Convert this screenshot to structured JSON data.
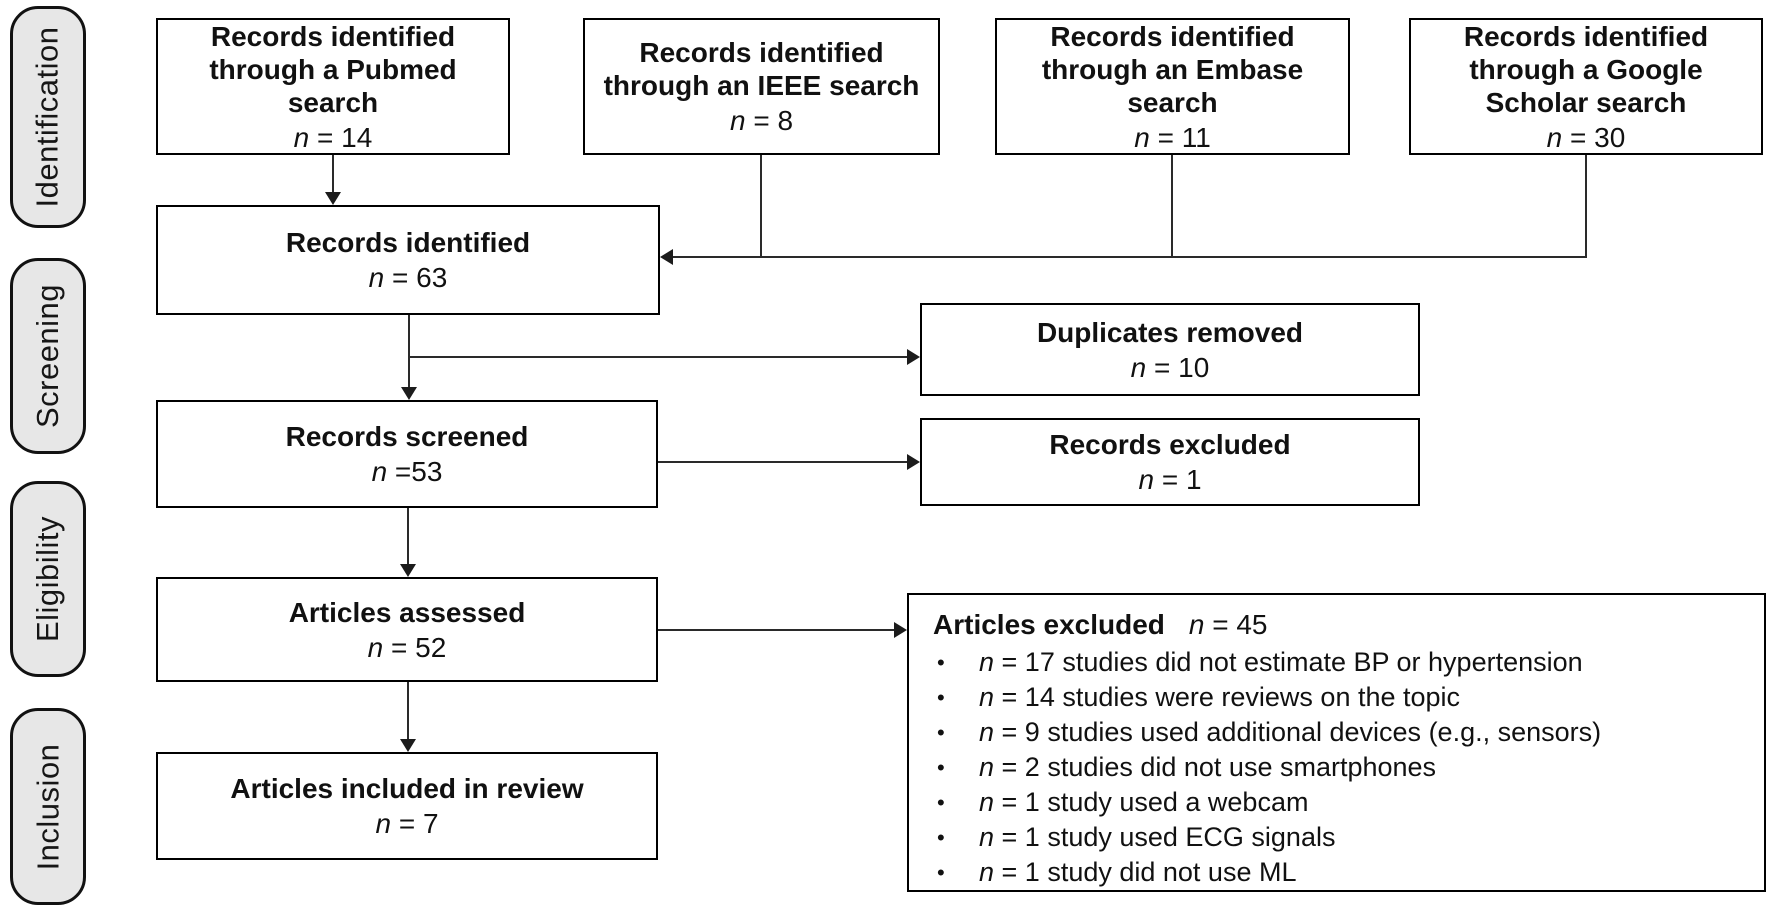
{
  "figure": {
    "kind": "PRISMA flow diagram",
    "colors": {
      "pill_fill": "#e7e7e7",
      "border": "#000000",
      "line": "#2a2a2a",
      "text": "#111111"
    }
  },
  "stages": [
    {
      "label": "Identification"
    },
    {
      "label": "Screening"
    },
    {
      "label": "Eligibility"
    },
    {
      "label": "Inclusion"
    }
  ],
  "source_boxes": [
    {
      "title": "Records identified through a Pubmed search",
      "count": "n = 14"
    },
    {
      "title": "Records identified through an IEEE search",
      "count": "n = 8"
    },
    {
      "title": "Records identified through an Embase search",
      "count": "n = 11"
    },
    {
      "title": "Records identified through a Google Scholar search",
      "count": "n = 30"
    }
  ],
  "flow_boxes": {
    "identified": {
      "title": "Records identified",
      "count": "n = 63"
    },
    "duplicates": {
      "title": "Duplicates removed",
      "count": "n = 10"
    },
    "screened": {
      "title": "Records screened",
      "count": "n =53"
    },
    "excluded": {
      "title": "Records excluded",
      "count": "n = 1"
    },
    "assessed": {
      "title": "Articles assessed",
      "count": "n = 52"
    },
    "included": {
      "title": "Articles included in review",
      "count": "n = 7"
    }
  },
  "excluded_box": {
    "title": "Articles excluded",
    "count": "n = 45",
    "items": [
      "n = 17 studies did not estimate BP or hypertension",
      "n = 14 studies were reviews on the topic",
      "n = 9 studies used additional devices (e.g., sensors)",
      "n = 2 studies did not use smartphones",
      "n = 1 study used a webcam",
      "n = 1 study used ECG signals",
      "n = 1 study did not use ML"
    ]
  }
}
